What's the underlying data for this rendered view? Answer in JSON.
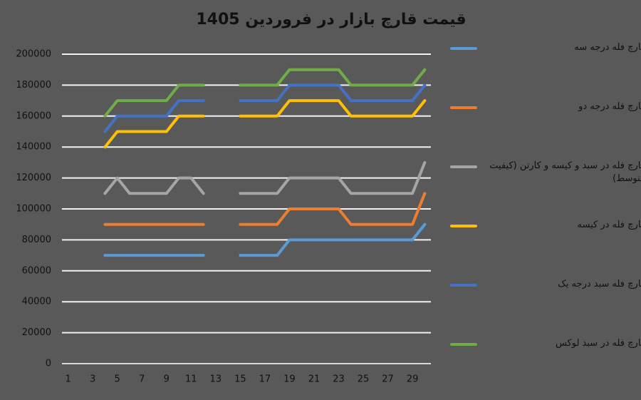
{
  "chart_data": {
    "type": "line",
    "title": "قیمت قارچ بازار در فروردین 1405",
    "categories": [
      1,
      null,
      3,
      null,
      5,
      null,
      7,
      null,
      9,
      null,
      11,
      null,
      13,
      null,
      15,
      null,
      17,
      null,
      19,
      null,
      21,
      null,
      23,
      null,
      25,
      null,
      27,
      null,
      29,
      null
    ],
    "ylim": [
      0,
      200000
    ],
    "yticks": [
      0,
      20000,
      40000,
      60000,
      80000,
      100000,
      120000,
      140000,
      160000,
      180000,
      200000
    ],
    "grid": true,
    "legend": "right",
    "series": [
      {
        "name": "قارچ فله درجه سه",
        "color": "#5b9bd5",
        "values": [
          null,
          null,
          null,
          70000,
          70000,
          70000,
          70000,
          70000,
          70000,
          70000,
          70000,
          70000,
          null,
          null,
          70000,
          70000,
          70000,
          70000,
          80000,
          80000,
          80000,
          80000,
          80000,
          80000,
          80000,
          80000,
          80000,
          80000,
          80000,
          90000
        ]
      },
      {
        "name": "قارچ فله درجه دو",
        "color": "#ed7d31",
        "values": [
          null,
          null,
          null,
          90000,
          90000,
          90000,
          90000,
          90000,
          90000,
          90000,
          90000,
          90000,
          null,
          null,
          90000,
          90000,
          90000,
          90000,
          100000,
          100000,
          100000,
          100000,
          100000,
          90000,
          90000,
          90000,
          90000,
          90000,
          90000,
          110000
        ]
      },
      {
        "name": "قارچ فله در سبد و کیسه و کارتن (کیفیت متوسط)",
        "color": "#a5a5a5",
        "values": [
          null,
          null,
          null,
          110000,
          120000,
          110000,
          110000,
          110000,
          110000,
          120000,
          120000,
          110000,
          null,
          null,
          110000,
          110000,
          110000,
          110000,
          120000,
          120000,
          120000,
          120000,
          120000,
          110000,
          110000,
          110000,
          110000,
          110000,
          110000,
          130000
        ]
      },
      {
        "name": "قارچ فله در کیسه",
        "color": "#ffc000",
        "values": [
          null,
          null,
          null,
          140000,
          150000,
          150000,
          150000,
          150000,
          150000,
          160000,
          160000,
          160000,
          null,
          null,
          160000,
          160000,
          160000,
          160000,
          170000,
          170000,
          170000,
          170000,
          170000,
          160000,
          160000,
          160000,
          160000,
          160000,
          160000,
          170000
        ]
      },
      {
        "name": "قارچ فله سبد درجه یک",
        "color": "#4472c4",
        "values": [
          null,
          null,
          null,
          150000,
          160000,
          160000,
          160000,
          160000,
          160000,
          170000,
          170000,
          170000,
          null,
          null,
          170000,
          170000,
          170000,
          170000,
          180000,
          180000,
          180000,
          180000,
          180000,
          170000,
          170000,
          170000,
          170000,
          170000,
          170000,
          180000
        ]
      },
      {
        "name": "قارچ فله در سبد لوکس",
        "color": "#70ad47",
        "values": [
          null,
          null,
          null,
          160000,
          170000,
          170000,
          170000,
          170000,
          170000,
          180000,
          180000,
          180000,
          null,
          null,
          180000,
          180000,
          180000,
          180000,
          190000,
          190000,
          190000,
          190000,
          190000,
          180000,
          180000,
          180000,
          180000,
          180000,
          180000,
          190000
        ]
      }
    ]
  }
}
